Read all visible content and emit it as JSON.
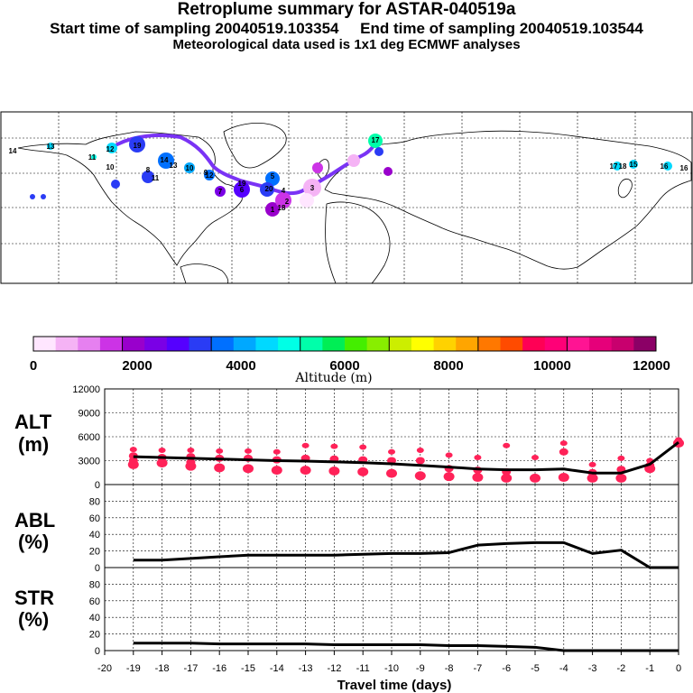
{
  "header": {
    "title": "Retroplume summary for ASTAR-040519a",
    "subtitle": "Start time of sampling 20040519.103354     End time of sampling 20040519.103544",
    "meteo": "Meteorological data used is 1x1 deg ECMWF analyses"
  },
  "colorbar": {
    "label": "Altitude (m)",
    "ticks": [
      "0",
      "2000",
      "4000",
      "6000",
      "8000",
      "10000",
      "12000"
    ],
    "colors": [
      "#ffe6ff",
      "#f5b3f5",
      "#e680f0",
      "#cc33e6",
      "#9900cc",
      "#7a00e6",
      "#5500ff",
      "#2a3cf5",
      "#0070ff",
      "#00a8ff",
      "#00d9ff",
      "#00ffe6",
      "#00ffaa",
      "#00ee55",
      "#44ee00",
      "#88ee00",
      "#ccee00",
      "#ffff00",
      "#ffd200",
      "#ffa500",
      "#ff7800",
      "#ff4b00",
      "#ff0055",
      "#ff0077",
      "#ff1493",
      "#e6007a",
      "#c8006e",
      "#8b0066"
    ]
  },
  "map": {
    "trajectory_labels": [
      "14",
      "13",
      "11",
      "12",
      "10",
      "19",
      "17",
      "18",
      "16",
      "15",
      "14",
      "13",
      "12",
      "11",
      "10",
      "9",
      "8",
      "7",
      "6",
      "5",
      "4",
      "3",
      "2",
      "1",
      "20",
      "19",
      "18",
      "17",
      "16"
    ]
  },
  "chart_data": [
    {
      "type": "line",
      "title": "ALT (m)",
      "panel_label": [
        "ALT",
        "(m)"
      ],
      "xlabel": "Travel time (days)",
      "ylabel": "ALT (m)",
      "xlim": [
        -20,
        0
      ],
      "ylim": [
        0,
        12000
      ],
      "yticks": [
        "12000",
        "9000",
        "6000",
        "3000",
        "0"
      ],
      "ytick_values": [
        12000,
        9000,
        6000,
        3000,
        0
      ],
      "series": [
        {
          "name": "mean altitude",
          "color": "#000000",
          "x": [
            -19,
            -18,
            -17,
            -16,
            -15,
            -14,
            -13,
            -12,
            -11,
            -10,
            -9,
            -8,
            -7,
            -6,
            -5,
            -4,
            -3,
            -2,
            -1,
            0
          ],
          "y": [
            3500,
            3400,
            3300,
            3200,
            3100,
            3000,
            2950,
            2850,
            2750,
            2600,
            2400,
            2200,
            1950,
            1850,
            1850,
            1950,
            1450,
            1450,
            2550,
            5300
          ]
        }
      ],
      "clusters": {
        "color": "#ff2258",
        "x": [
          -19,
          -18,
          -17,
          -16,
          -15,
          -14,
          -13,
          -12,
          -11,
          -10,
          -9,
          -8,
          -7,
          -6,
          -5,
          -4,
          -3,
          -2,
          -1,
          0
        ],
        "y": [
          [
            4400,
            3600,
            3000,
            2500
          ],
          [
            4300,
            3400,
            2700
          ],
          [
            4300,
            3500,
            2800,
            2300
          ],
          [
            4200,
            3300,
            2100
          ],
          [
            4200,
            3300,
            2000
          ],
          [
            4100,
            3100,
            1800
          ],
          [
            4900,
            3300,
            1800
          ],
          [
            4800,
            3200,
            1700
          ],
          [
            4700,
            3100,
            1600
          ],
          [
            4100,
            3000,
            1400
          ],
          [
            4300,
            3000,
            1100
          ],
          [
            3700,
            2000,
            1000
          ],
          [
            3400,
            1800,
            900
          ],
          [
            4900,
            1600,
            800
          ],
          [
            3400,
            800
          ],
          [
            5200,
            4100,
            900
          ],
          [
            2500,
            1500,
            800
          ],
          [
            3300,
            1900,
            800
          ],
          [
            3000,
            2400,
            2000
          ],
          [
            5600,
            5200
          ]
        ]
      }
    },
    {
      "type": "line",
      "title": "ABL (%)",
      "panel_label": [
        "ABL",
        "(%)"
      ],
      "xlabel": "Travel time (days)",
      "ylabel": "ABL (%)",
      "xlim": [
        -20,
        0
      ],
      "ylim": [
        0,
        100
      ],
      "yticks": [
        "80",
        "60",
        "40",
        "20",
        "0"
      ],
      "ytick_values": [
        80,
        60,
        40,
        20,
        0
      ],
      "series": [
        {
          "name": "ABL fraction",
          "color": "#000000",
          "x": [
            -19,
            -18,
            -17,
            -16,
            -15,
            -14,
            -13,
            -12,
            -11,
            -10,
            -9,
            -8,
            -7,
            -6,
            -5,
            -4,
            -3,
            -2,
            -1,
            0
          ],
          "y": [
            9,
            9,
            11,
            13,
            15,
            15,
            15,
            15,
            16,
            17,
            17,
            18,
            27,
            29,
            30,
            30,
            17,
            21,
            0,
            0
          ]
        }
      ]
    },
    {
      "type": "line",
      "title": "STR (%)",
      "panel_label": [
        "STR",
        "(%)"
      ],
      "xlabel": "Travel time (days)",
      "ylabel": "STR (%)",
      "xlim": [
        -20,
        0
      ],
      "ylim": [
        0,
        100
      ],
      "yticks": [
        "80",
        "60",
        "40",
        "20",
        "0"
      ],
      "ytick_values": [
        80,
        60,
        40,
        20,
        0
      ],
      "xticks": [
        "-20",
        "-19",
        "-18",
        "-17",
        "-16",
        "-15",
        "-14",
        "-13",
        "-12",
        "-11",
        "-10",
        "-9",
        "-8",
        "-7",
        "-6",
        "-5",
        "-4",
        "-3",
        "-2",
        "-1",
        "0"
      ],
      "xtick_values": [
        -20,
        -19,
        -18,
        -17,
        -16,
        -15,
        -14,
        -13,
        -12,
        -11,
        -10,
        -9,
        -8,
        -7,
        -6,
        -5,
        -4,
        -3,
        -2,
        -1,
        0
      ],
      "series": [
        {
          "name": "stratospheric fraction",
          "color": "#000000",
          "x": [
            -19,
            -18,
            -17,
            -16,
            -15,
            -14,
            -13,
            -12,
            -11,
            -10,
            -9,
            -8,
            -7,
            -6,
            -5,
            -4,
            -3,
            -2,
            -1,
            0
          ],
          "y": [
            9,
            9,
            9,
            8,
            8,
            8,
            8,
            7,
            7,
            7,
            7,
            6,
            6,
            5,
            4,
            0,
            0,
            0,
            0,
            0
          ]
        }
      ]
    }
  ]
}
